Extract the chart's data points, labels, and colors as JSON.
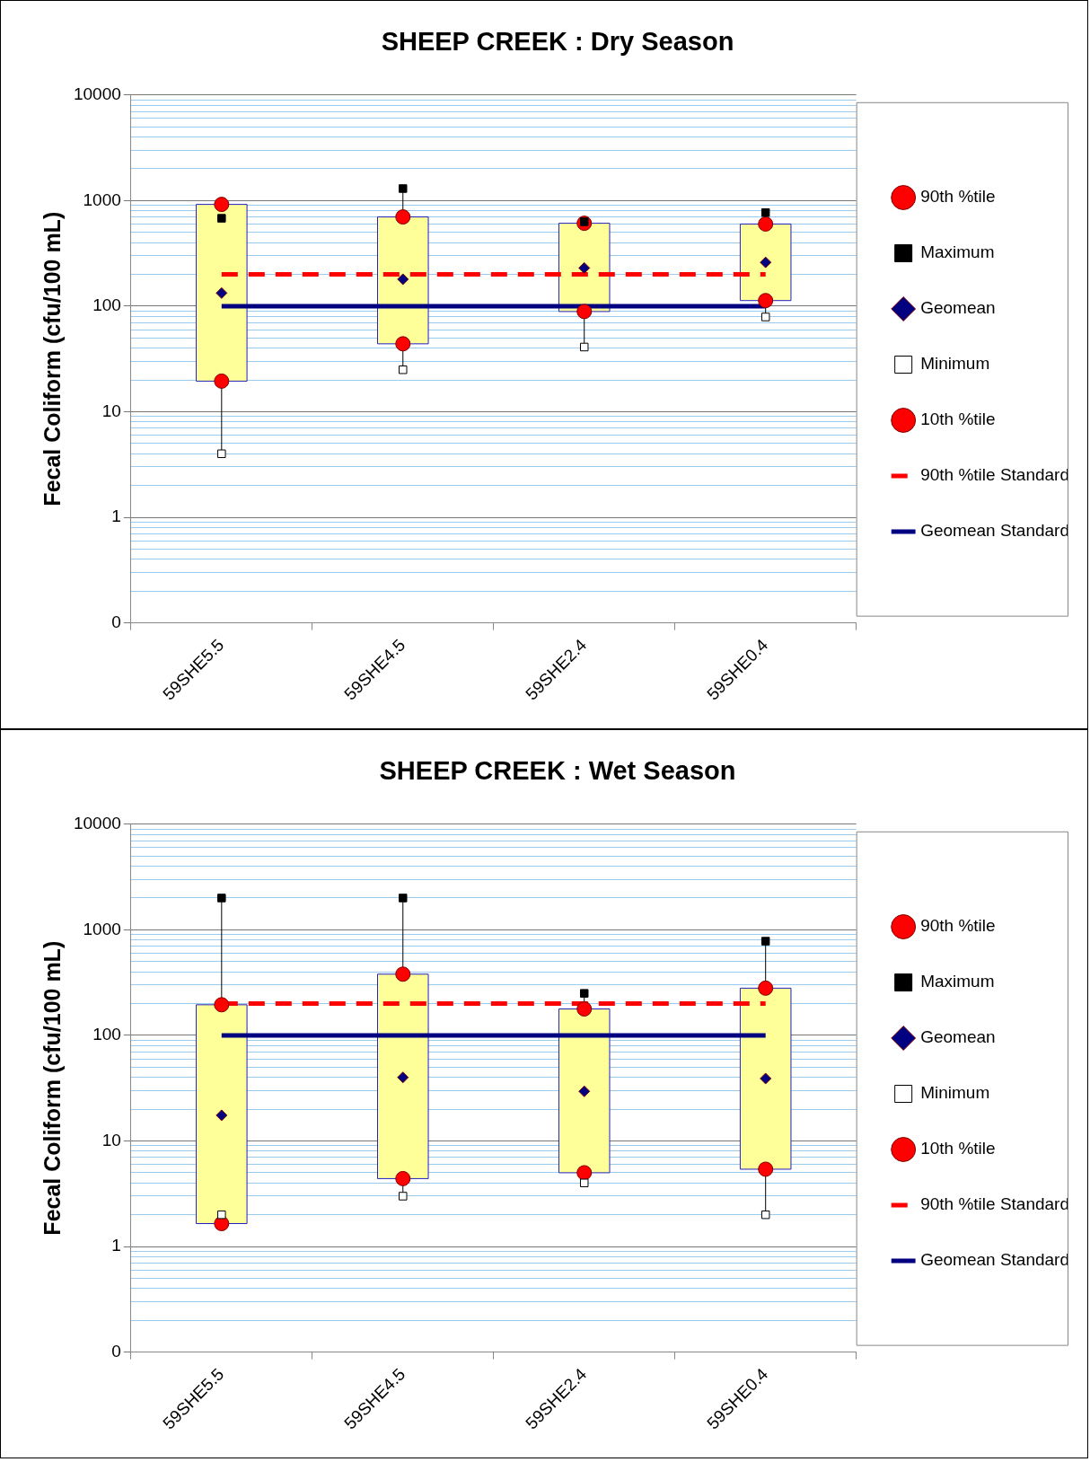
{
  "chart_data": [
    {
      "type": "box",
      "title": "SHEEP CREEK : Dry Season",
      "ylabel": "Fecal Coliform (cfu/100 mL)",
      "categories": [
        "59SHE5.5",
        "59SHE4.5",
        "59SHE2.4",
        "59SHE0.4"
      ],
      "ylim": [
        0.1,
        10000
      ],
      "yticks": [
        {
          "value": 0.1,
          "label": "0"
        },
        {
          "value": 0.2,
          "label": null
        },
        {
          "value": 0.3,
          "label": null
        },
        {
          "value": 0.4,
          "label": null
        },
        {
          "value": 0.5,
          "label": null
        },
        {
          "value": 0.6,
          "label": null
        },
        {
          "value": 0.7,
          "label": null
        },
        {
          "value": 0.8,
          "label": null
        },
        {
          "value": 0.9,
          "label": null
        },
        1,
        {
          "value": 2,
          "label": null
        },
        {
          "value": 3,
          "label": null
        },
        {
          "value": 4,
          "label": null
        },
        {
          "value": 5,
          "label": null
        },
        {
          "value": 6,
          "label": null
        },
        {
          "value": 7,
          "label": null
        },
        {
          "value": 8,
          "label": null
        },
        {
          "value": 9,
          "label": null
        },
        10,
        {
          "value": 20,
          "label": null
        },
        {
          "value": 30,
          "label": null
        },
        {
          "value": 40,
          "label": null
        },
        {
          "value": 50,
          "label": null
        },
        {
          "value": 60,
          "label": null
        },
        {
          "value": 70,
          "label": null
        },
        {
          "value": 80,
          "label": null
        },
        {
          "value": 90,
          "label": null
        },
        100,
        {
          "value": 200,
          "label": null
        },
        {
          "value": 300,
          "label": null
        },
        {
          "value": 400,
          "label": null
        },
        {
          "value": 500,
          "label": null
        },
        {
          "value": 600,
          "label": null
        },
        {
          "value": 700,
          "label": null
        },
        {
          "value": 800,
          "label": null
        },
        {
          "value": 900,
          "label": null
        },
        1000,
        {
          "value": 2000,
          "label": null
        },
        {
          "value": 3000,
          "label": null
        },
        {
          "value": 4000,
          "label": null
        },
        {
          "value": 5000,
          "label": null
        },
        {
          "value": 6000,
          "label": null
        },
        {
          "value": 7000,
          "label": null
        },
        {
          "value": 8000,
          "label": null
        },
        {
          "value": 9000,
          "label": null
        },
        10000
      ],
      "log": true,
      "grid": "y",
      "legend": "right",
      "series": [
        {
          "type": "box",
          "color": "#ffff99",
          "boxes": [
            {
              "low": 4,
              "q1": 19.5,
              "q3": 920,
              "high": 680
            },
            {
              "low": 25,
              "q1": 44,
              "q3": 700,
              "high": 1300
            },
            {
              "low": 40,
              "q1": 89,
              "q3": 610,
              "high": 630
            },
            {
              "low": 79,
              "q1": 113,
              "q3": 600,
              "high": 770
            }
          ]
        },
        {
          "type": "scatter",
          "name": "90th %tile",
          "color": "#ff0000",
          "marker": "circle",
          "values": [
            920,
            700,
            610,
            600
          ]
        },
        {
          "type": "scatter",
          "name": "Maximum",
          "color": "#000000",
          "marker": "square",
          "values": [
            680,
            1300,
            630,
            770
          ]
        },
        {
          "type": "scatter",
          "name": "Geomean",
          "color": "#000080",
          "marker": "diamond",
          "values": [
            133,
            180,
            230,
            260
          ]
        },
        {
          "type": "scatter",
          "name": "Minimum",
          "color": "#ffffff",
          "marker": "square",
          "values": [
            4,
            25,
            41,
            79
          ]
        },
        {
          "type": "scatter",
          "name": "10th %tile",
          "color": "#ff0000",
          "marker": "circle",
          "values": [
            19.5,
            44,
            89,
            113
          ]
        },
        {
          "type": "line",
          "name": "90th %tile Standard",
          "color": "#ff0000",
          "line_style": "dashed",
          "marker": "none",
          "values": [
            200,
            200,
            200,
            200
          ]
        },
        {
          "type": "line",
          "name": "Geomean Standard",
          "color": "#000080",
          "line_style": "solid",
          "marker": "none",
          "values": [
            100,
            100,
            100,
            100
          ]
        }
      ]
    },
    {
      "type": "box",
      "title": "SHEEP CREEK : Wet Season",
      "ylabel": "Fecal Coliform (cfu/100 mL)",
      "categories": [
        "59SHE5.5",
        "59SHE4.5",
        "59SHE2.4",
        "59SHE0.4"
      ],
      "ylim": [
        0.1,
        10000
      ],
      "yticks": [
        {
          "value": 0.1,
          "label": "0"
        },
        {
          "value": 0.2,
          "label": null
        },
        {
          "value": 0.3,
          "label": null
        },
        {
          "value": 0.4,
          "label": null
        },
        {
          "value": 0.5,
          "label": null
        },
        {
          "value": 0.6,
          "label": null
        },
        {
          "value": 0.7,
          "label": null
        },
        {
          "value": 0.8,
          "label": null
        },
        {
          "value": 0.9,
          "label": null
        },
        1,
        {
          "value": 2,
          "label": null
        },
        {
          "value": 3,
          "label": null
        },
        {
          "value": 4,
          "label": null
        },
        {
          "value": 5,
          "label": null
        },
        {
          "value": 6,
          "label": null
        },
        {
          "value": 7,
          "label": null
        },
        {
          "value": 8,
          "label": null
        },
        {
          "value": 9,
          "label": null
        },
        10,
        {
          "value": 20,
          "label": null
        },
        {
          "value": 30,
          "label": null
        },
        {
          "value": 40,
          "label": null
        },
        {
          "value": 50,
          "label": null
        },
        {
          "value": 60,
          "label": null
        },
        {
          "value": 70,
          "label": null
        },
        {
          "value": 80,
          "label": null
        },
        {
          "value": 90,
          "label": null
        },
        100,
        {
          "value": 200,
          "label": null
        },
        {
          "value": 300,
          "label": null
        },
        {
          "value": 400,
          "label": null
        },
        {
          "value": 500,
          "label": null
        },
        {
          "value": 600,
          "label": null
        },
        {
          "value": 700,
          "label": null
        },
        {
          "value": 800,
          "label": null
        },
        {
          "value": 900,
          "label": null
        },
        1000,
        {
          "value": 2000,
          "label": null
        },
        {
          "value": 3000,
          "label": null
        },
        {
          "value": 4000,
          "label": null
        },
        {
          "value": 5000,
          "label": null
        },
        {
          "value": 6000,
          "label": null
        },
        {
          "value": 7000,
          "label": null
        },
        {
          "value": 8000,
          "label": null
        },
        {
          "value": 9000,
          "label": null
        },
        10000
      ],
      "log": true,
      "grid": "y",
      "legend": "right",
      "series": [
        {
          "type": "box",
          "color": "#ffff99",
          "boxes": [
            {
              "low": 2,
              "q1": 1.65,
              "q3": 195,
              "high": 2000
            },
            {
              "low": 3,
              "q1": 4.4,
              "q3": 380,
              "high": 2000
            },
            {
              "low": 4,
              "q1": 5,
              "q3": 178,
              "high": 250
            },
            {
              "low": 2,
              "q1": 5.4,
              "q3": 280,
              "high": 780
            }
          ]
        },
        {
          "type": "scatter",
          "name": "90th %tile",
          "color": "#ff0000",
          "marker": "circle",
          "values": [
            195,
            380,
            178,
            280
          ]
        },
        {
          "type": "scatter",
          "name": "Maximum",
          "color": "#000000",
          "marker": "square",
          "values": [
            2000,
            2000,
            250,
            780
          ]
        },
        {
          "type": "scatter",
          "name": "Geomean",
          "color": "#000080",
          "marker": "diamond",
          "values": [
            17.5,
            40,
            29.5,
            39
          ]
        },
        {
          "type": "scatter",
          "name": "Minimum",
          "color": "#ffffff",
          "marker": "square",
          "values": [
            2,
            3,
            4,
            2
          ]
        },
        {
          "type": "scatter",
          "name": "10th %tile",
          "color": "#ff0000",
          "marker": "circle",
          "values": [
            1.65,
            4.4,
            5,
            5.4
          ]
        },
        {
          "type": "line",
          "name": "90th %tile Standard",
          "color": "#ff0000",
          "line_style": "dashed",
          "marker": "none",
          "values": [
            200,
            200,
            200,
            200
          ]
        },
        {
          "type": "line",
          "name": "Geomean Standard",
          "color": "#000080",
          "line_style": "solid",
          "marker": "none",
          "values": [
            100,
            100,
            100,
            100
          ]
        }
      ]
    }
  ]
}
